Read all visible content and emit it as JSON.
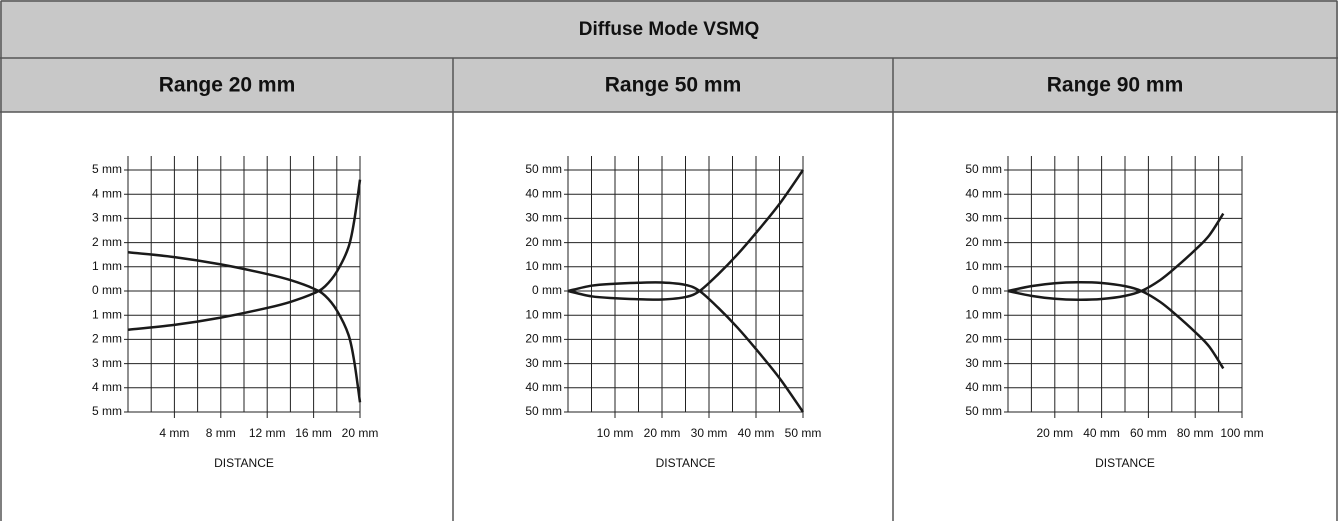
{
  "title": "Diffuse Mode VSMQ",
  "columns": [
    "Range 20 mm",
    "Range 50 mm",
    "Range 90 mm"
  ],
  "chart_data": [
    {
      "type": "line",
      "xlabel": "DISTANCE",
      "xlim": [
        0,
        20
      ],
      "ylim": [
        -5,
        5
      ],
      "xticks": [
        {
          "value": 4,
          "label": "4 mm"
        },
        {
          "value": 8,
          "label": "8 mm"
        },
        {
          "value": 12,
          "label": "12 mm"
        },
        {
          "value": 16,
          "label": "16 mm"
        },
        {
          "value": 20,
          "label": "20 mm"
        }
      ],
      "xgrid": [
        0,
        2,
        4,
        6,
        8,
        10,
        12,
        14,
        16,
        18,
        20
      ],
      "yticks": [
        {
          "value": 5,
          "label": "5 mm"
        },
        {
          "value": 4,
          "label": "4 mm"
        },
        {
          "value": 3,
          "label": "3 mm"
        },
        {
          "value": 2,
          "label": "2 mm"
        },
        {
          "value": 1,
          "label": "1 mm"
        },
        {
          "value": 0,
          "label": "0 mm"
        },
        {
          "value": -1,
          "label": "1 mm"
        },
        {
          "value": -2,
          "label": "2 mm"
        },
        {
          "value": -3,
          "label": "3 mm"
        },
        {
          "value": -4,
          "label": "4 mm"
        },
        {
          "value": -5,
          "label": "5 mm"
        }
      ],
      "series": [
        {
          "color": "#1a1a1a",
          "x": [
            0,
            4,
            8,
            12,
            14,
            16,
            17,
            18,
            19,
            19.5,
            20
          ],
          "values": [
            1.6,
            1.4,
            1.1,
            0.7,
            0.45,
            0.1,
            -0.2,
            -0.8,
            -1.8,
            -2.9,
            -4.6
          ]
        },
        {
          "color": "#1a1a1a",
          "x": [
            0,
            4,
            8,
            12,
            14,
            16,
            17,
            18,
            19,
            19.5,
            20
          ],
          "values": [
            -1.6,
            -1.4,
            -1.1,
            -0.7,
            -0.45,
            -0.1,
            0.2,
            0.8,
            1.8,
            2.9,
            4.6
          ]
        }
      ]
    },
    {
      "type": "line",
      "xlabel": "DISTANCE",
      "xlim": [
        0,
        50
      ],
      "ylim": [
        -50,
        50
      ],
      "xticks": [
        {
          "value": 10,
          "label": "10 mm"
        },
        {
          "value": 20,
          "label": "20 mm"
        },
        {
          "value": 30,
          "label": "30 mm"
        },
        {
          "value": 40,
          "label": "40 mm"
        },
        {
          "value": 50,
          "label": "50 mm"
        }
      ],
      "xgrid": [
        0,
        5,
        10,
        15,
        20,
        25,
        30,
        35,
        40,
        45,
        50
      ],
      "yticks": [
        {
          "value": 50,
          "label": "50 mm"
        },
        {
          "value": 40,
          "label": "40 mm"
        },
        {
          "value": 30,
          "label": "30 mm"
        },
        {
          "value": 20,
          "label": "20 mm"
        },
        {
          "value": 10,
          "label": "10 mm"
        },
        {
          "value": 0,
          "label": "0 mm"
        },
        {
          "value": -10,
          "label": "10 mm"
        },
        {
          "value": -20,
          "label": "20 mm"
        },
        {
          "value": -30,
          "label": "30 mm"
        },
        {
          "value": -40,
          "label": "40 mm"
        },
        {
          "value": -50,
          "label": "50 mm"
        }
      ],
      "series": [
        {
          "color": "#1a1a1a",
          "x": [
            0,
            5,
            10,
            15,
            20,
            25,
            28,
            32,
            36,
            40,
            45,
            50
          ],
          "values": [
            0,
            2.2,
            3,
            3.4,
            3.5,
            2.5,
            0,
            -7,
            -15,
            -24,
            -36,
            -50
          ]
        },
        {
          "color": "#1a1a1a",
          "x": [
            0,
            5,
            10,
            15,
            20,
            25,
            28,
            32,
            36,
            40,
            45,
            50
          ],
          "values": [
            0,
            -2.2,
            -3,
            -3.4,
            -3.5,
            -2.5,
            0,
            7,
            15,
            24,
            36,
            50
          ]
        }
      ]
    },
    {
      "type": "line",
      "xlabel": "DISTANCE",
      "xlim": [
        0,
        100
      ],
      "ylim": [
        -50,
        50
      ],
      "xticks": [
        {
          "value": 20,
          "label": "20 mm"
        },
        {
          "value": 40,
          "label": "40 mm"
        },
        {
          "value": 60,
          "label": "60 mm"
        },
        {
          "value": 80,
          "label": "80 mm"
        },
        {
          "value": 100,
          "label": "100 mm"
        }
      ],
      "xgrid": [
        0,
        10,
        20,
        30,
        40,
        50,
        60,
        70,
        80,
        90,
        100
      ],
      "yticks": [
        {
          "value": 50,
          "label": "50 mm"
        },
        {
          "value": 40,
          "label": "40 mm"
        },
        {
          "value": 30,
          "label": "30 mm"
        },
        {
          "value": 20,
          "label": "20 mm"
        },
        {
          "value": 10,
          "label": "10 mm"
        },
        {
          "value": 0,
          "label": "0 mm"
        },
        {
          "value": -10,
          "label": "10 mm"
        },
        {
          "value": -20,
          "label": "20 mm"
        },
        {
          "value": -30,
          "label": "30 mm"
        },
        {
          "value": -40,
          "label": "40 mm"
        },
        {
          "value": -50,
          "label": "50 mm"
        }
      ],
      "series": [
        {
          "color": "#1a1a1a",
          "x": [
            0,
            10,
            20,
            30,
            40,
            50,
            57,
            65,
            72,
            80,
            86,
            92
          ],
          "values": [
            0,
            2,
            3.2,
            3.6,
            3.3,
            2,
            0,
            -4.5,
            -10,
            -17,
            -23,
            -32
          ]
        },
        {
          "color": "#1a1a1a",
          "x": [
            0,
            10,
            20,
            30,
            40,
            50,
            57,
            65,
            72,
            80,
            86,
            92
          ],
          "values": [
            0,
            -2,
            -3.2,
            -3.6,
            -3.3,
            -2,
            0,
            4.5,
            10,
            17,
            23,
            32
          ]
        }
      ]
    }
  ]
}
